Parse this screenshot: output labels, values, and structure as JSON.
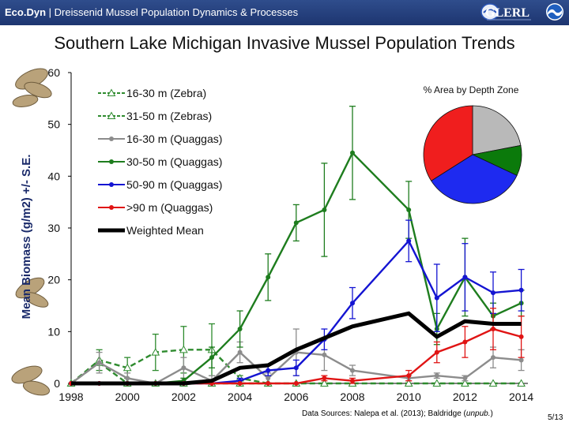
{
  "header": {
    "brand_bold": "Eco.Dyn",
    "brand_rest": " | Dreissenid Mussel Population Dynamics & Processes",
    "logo_text": "GLERL",
    "logo2": "noaa-emblem-icon"
  },
  "slide_title": "Southern Lake Michigan Invasive Mussel Population Trends",
  "source_prefix": "Data Sources: Nalepa et al. (2013); Baldridge (",
  "source_italic": "unpub.",
  "source_suffix": ")",
  "page_number": "5/13",
  "chart_data": [
    {
      "type": "line",
      "ylabel": "Mean Biomass (g/m2) +/- S.E.",
      "xlabel": "",
      "xlim": [
        1998,
        2014.5
      ],
      "ylim": [
        0,
        60
      ],
      "xticks": [
        1998,
        2000,
        2002,
        2004,
        2006,
        2008,
        2010,
        2012,
        2014
      ],
      "yticks": [
        0,
        10,
        20,
        30,
        40,
        50,
        60
      ],
      "legend_position": "top-left",
      "series": [
        {
          "name": "16-30 m (Zebra)",
          "color": "#2e8b2e",
          "dash": true,
          "marker": "triangle-open",
          "x": [
            1998,
            1999,
            2000,
            2001,
            2002,
            2003,
            2004,
            2005,
            2006,
            2007,
            2008,
            2010,
            2011,
            2012,
            2013,
            2014
          ],
          "y": [
            0,
            4,
            0,
            0,
            0,
            0,
            0,
            0,
            0,
            0,
            0,
            0,
            0,
            0,
            0,
            0
          ],
          "err": []
        },
        {
          "name": "31-50 m (Zebras)",
          "color": "#2e8b2e",
          "dash": true,
          "marker": "triangle-open",
          "x": [
            1998,
            1999,
            2000,
            2001,
            2002,
            2003,
            2004,
            2005
          ],
          "y": [
            0,
            4.5,
            3,
            6,
            6.5,
            6.5,
            1,
            0
          ],
          "err": [
            0,
            2,
            2,
            3.5,
            4.5,
            5,
            0.5,
            0
          ]
        },
        {
          "name": "16-30 m (Quaggas)",
          "color": "#8c8c8c",
          "dash": false,
          "marker": "circle",
          "x": [
            1998,
            1999,
            2000,
            2001,
            2002,
            2003,
            2004,
            2005,
            2006,
            2007,
            2008,
            2010,
            2011,
            2012,
            2013,
            2014
          ],
          "y": [
            0,
            4,
            1,
            0,
            3,
            0.5,
            6,
            1,
            6,
            5.5,
            2.5,
            1,
            1.5,
            1,
            5,
            4.5
          ],
          "err": [
            0,
            2,
            1,
            0,
            2,
            1,
            2,
            1,
            4.5,
            3,
            1,
            0.5,
            0.5,
            0.5,
            2,
            2
          ]
        },
        {
          "name": "30-50 m (Quaggas)",
          "color": "#1e7d1e",
          "dash": false,
          "marker": "circle",
          "x": [
            1998,
            1999,
            2000,
            2001,
            2002,
            2003,
            2004,
            2005,
            2006,
            2007,
            2008,
            2010,
            2011,
            2012,
            2013,
            2014
          ],
          "y": [
            0,
            0,
            0,
            0,
            0.5,
            5,
            10.5,
            20.5,
            31,
            33.5,
            44.5,
            33.5,
            10.5,
            20.5,
            13,
            15.5
          ],
          "err": [
            0,
            0,
            0,
            0,
            0.5,
            2,
            3.5,
            4.5,
            3.5,
            9,
            9,
            5.5,
            3,
            7.5,
            2.5,
            2.5
          ]
        },
        {
          "name": "50-90 m (Quaggas)",
          "color": "#1414d2",
          "dash": false,
          "marker": "circle",
          "x": [
            1998,
            1999,
            2000,
            2001,
            2002,
            2003,
            2004,
            2005,
            2006,
            2007,
            2008,
            2010,
            2011,
            2012,
            2013,
            2014
          ],
          "y": [
            0,
            0,
            0,
            0,
            0,
            0,
            0.5,
            2.5,
            3,
            8.5,
            15.5,
            27.5,
            16.5,
            20.5,
            17.5,
            18
          ],
          "err": [
            0,
            0,
            0,
            0,
            0,
            0,
            0.5,
            1,
            1.5,
            2,
            3,
            4,
            6.5,
            6.5,
            4,
            4
          ]
        },
        {
          "name": ">90 m (Quaggas)",
          "color": "#e01414",
          "dash": false,
          "marker": "circle",
          "x": [
            1998,
            1999,
            2000,
            2001,
            2002,
            2003,
            2004,
            2005,
            2006,
            2007,
            2008,
            2010,
            2011,
            2012,
            2013,
            2014
          ],
          "y": [
            0,
            0,
            0,
            0,
            0,
            0,
            0,
            0,
            0,
            1,
            0.5,
            1.5,
            6,
            8,
            10.5,
            9
          ],
          "err": [
            0,
            0,
            0,
            0,
            0,
            0,
            0,
            0,
            0,
            0.5,
            0.5,
            1,
            2,
            3,
            4,
            4
          ]
        },
        {
          "name": "Weighted Mean",
          "color": "#000000",
          "dash": false,
          "marker": "none",
          "width": 5,
          "x": [
            1998,
            2000,
            2002,
            2003,
            2004,
            2005,
            2006,
            2008,
            2010,
            2011,
            2012,
            2013,
            2014
          ],
          "y": [
            0,
            0,
            0,
            0.5,
            3,
            3.5,
            6.5,
            11,
            13.5,
            9,
            12,
            11.5,
            11.5
          ],
          "err": []
        }
      ]
    },
    {
      "type": "pie",
      "title": "% Area by Depth Zone",
      "series": [
        {
          "name": "",
          "color": "#b9b9b9",
          "value": 22
        },
        {
          "name": "",
          "color": "#0b7a0b",
          "value": 10
        },
        {
          "name": "",
          "color": "#1e2af0",
          "value": 34
        },
        {
          "name": "",
          "color": "#f01e1e",
          "value": 34
        }
      ]
    }
  ]
}
